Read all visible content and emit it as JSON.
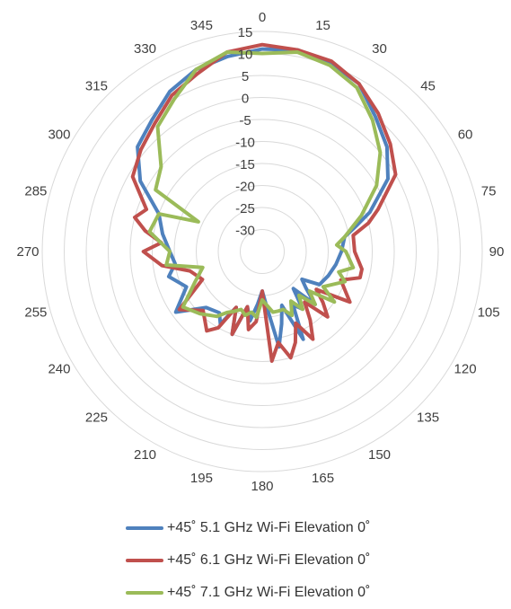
{
  "chart_data": {
    "type": "radar",
    "angle_labels": [
      "0",
      "15",
      "30",
      "45",
      "60",
      "75",
      "90",
      "105",
      "120",
      "135",
      "150",
      "165",
      "180",
      "195",
      "210",
      "225",
      "240",
      "255",
      "270",
      "285",
      "300",
      "315",
      "330",
      "345"
    ],
    "r_ticks": [
      15,
      10,
      5,
      0,
      -5,
      -10,
      -15,
      -20,
      -25,
      -30
    ],
    "r_tick_labels": [
      "15",
      "10",
      "5",
      "0",
      "-5",
      "-10",
      "-15",
      "-20",
      "-25",
      "-30"
    ],
    "rlim": [
      -35,
      15
    ],
    "grid": true,
    "legend_position": "bottom",
    "series": [
      {
        "name": "+45˚ 5.1 GHz Wi-Fi Elevation 0˚",
        "color": "#4f81bd",
        "points": [
          [
            0,
            11
          ],
          [
            10,
            11.5
          ],
          [
            20,
            10.5
          ],
          [
            30,
            9
          ],
          [
            40,
            5
          ],
          [
            50,
            2
          ],
          [
            60,
            -2
          ],
          [
            70,
            -9
          ],
          [
            75,
            -13
          ],
          [
            80,
            -16
          ],
          [
            90,
            -17
          ],
          [
            100,
            -18
          ],
          [
            110,
            -19
          ],
          [
            120,
            -20
          ],
          [
            125,
            -24
          ],
          [
            130,
            -22
          ],
          [
            135,
            -18
          ],
          [
            140,
            -24
          ],
          [
            145,
            -19
          ],
          [
            150,
            -21
          ],
          [
            155,
            -13
          ],
          [
            160,
            -22
          ],
          [
            165,
            -18
          ],
          [
            170,
            -13
          ],
          [
            175,
            -22
          ],
          [
            180,
            -26
          ],
          [
            185,
            -23
          ],
          [
            190,
            -19
          ],
          [
            195,
            -22
          ],
          [
            200,
            -15
          ],
          [
            205,
            -21
          ],
          [
            210,
            -16
          ],
          [
            215,
            -18
          ],
          [
            225,
            -17
          ],
          [
            235,
            -11
          ],
          [
            245,
            -16
          ],
          [
            255,
            -13
          ],
          [
            262,
            -15
          ],
          [
            270,
            -14
          ],
          [
            280,
            -12
          ],
          [
            290,
            -10
          ],
          [
            300,
            -3
          ],
          [
            310,
            2
          ],
          [
            320,
            4
          ],
          [
            330,
            7
          ],
          [
            340,
            9
          ],
          [
            350,
            10
          ],
          [
            360,
            11
          ]
        ]
      },
      {
        "name": "+45˚ 6.1 GHz Wi-Fi Elevation 0˚",
        "color": "#c0504d",
        "points": [
          [
            0,
            12
          ],
          [
            10,
            11.5
          ],
          [
            20,
            11
          ],
          [
            30,
            9
          ],
          [
            40,
            6
          ],
          [
            50,
            3
          ],
          [
            60,
            0
          ],
          [
            70,
            -7
          ],
          [
            75,
            -10
          ],
          [
            80,
            -14
          ],
          [
            90,
            -14
          ],
          [
            100,
            -12
          ],
          [
            105,
            -12
          ],
          [
            110,
            -16
          ],
          [
            120,
            -12
          ],
          [
            125,
            -20
          ],
          [
            130,
            -17
          ],
          [
            135,
            -14
          ],
          [
            140,
            -20
          ],
          [
            145,
            -16
          ],
          [
            150,
            -12
          ],
          [
            155,
            -17
          ],
          [
            160,
            -13
          ],
          [
            165,
            -10
          ],
          [
            170,
            -14
          ],
          [
            175,
            -10
          ],
          [
            180,
            -26
          ],
          [
            185,
            -19
          ],
          [
            190,
            -17
          ],
          [
            195,
            -22
          ],
          [
            200,
            -15
          ],
          [
            205,
            -21
          ],
          [
            210,
            -15
          ],
          [
            215,
            -13
          ],
          [
            225,
            -16
          ],
          [
            235,
            -12
          ],
          [
            245,
            -20
          ],
          [
            255,
            -18
          ],
          [
            262,
            -12
          ],
          [
            270,
            -8
          ],
          [
            275,
            -12
          ],
          [
            280,
            -8
          ],
          [
            285,
            -5
          ],
          [
            290,
            -7
          ],
          [
            300,
            -1
          ],
          [
            310,
            1
          ],
          [
            320,
            3
          ],
          [
            330,
            6
          ],
          [
            340,
            8
          ],
          [
            350,
            11
          ],
          [
            360,
            12
          ]
        ]
      },
      {
        "name": "+45˚ 7.1 GHz Wi-Fi Elevation 0˚",
        "color": "#9bbb59",
        "points": [
          [
            0,
            10
          ],
          [
            10,
            11
          ],
          [
            20,
            10
          ],
          [
            30,
            8
          ],
          [
            40,
            4
          ],
          [
            50,
            0
          ],
          [
            60,
            -5
          ],
          [
            70,
            -11
          ],
          [
            80,
            -16
          ],
          [
            85,
            -18
          ],
          [
            90,
            -16
          ],
          [
            100,
            -14
          ],
          [
            105,
            -17
          ],
          [
            110,
            -15
          ],
          [
            120,
            -19
          ],
          [
            125,
            -15
          ],
          [
            130,
            -21
          ],
          [
            135,
            -18
          ],
          [
            140,
            -22
          ],
          [
            145,
            -19
          ],
          [
            150,
            -22
          ],
          [
            155,
            -19
          ],
          [
            160,
            -21
          ],
          [
            165,
            -21
          ],
          [
            170,
            -21
          ],
          [
            180,
            -24
          ],
          [
            185,
            -20
          ],
          [
            190,
            -21
          ],
          [
            195,
            -20
          ],
          [
            200,
            -21
          ],
          [
            205,
            -20
          ],
          [
            210,
            -19
          ],
          [
            215,
            -17
          ],
          [
            225,
            -15
          ],
          [
            235,
            -13
          ],
          [
            245,
            -18
          ],
          [
            255,
            -21
          ],
          [
            262,
            -13
          ],
          [
            270,
            -14
          ],
          [
            280,
            -9
          ],
          [
            290,
            -10
          ],
          [
            295,
            -19
          ],
          [
            300,
            -7
          ],
          [
            310,
            -5
          ],
          [
            320,
            2
          ],
          [
            330,
            5
          ],
          [
            340,
            9
          ],
          [
            350,
            11
          ],
          [
            360,
            10
          ]
        ]
      }
    ]
  }
}
